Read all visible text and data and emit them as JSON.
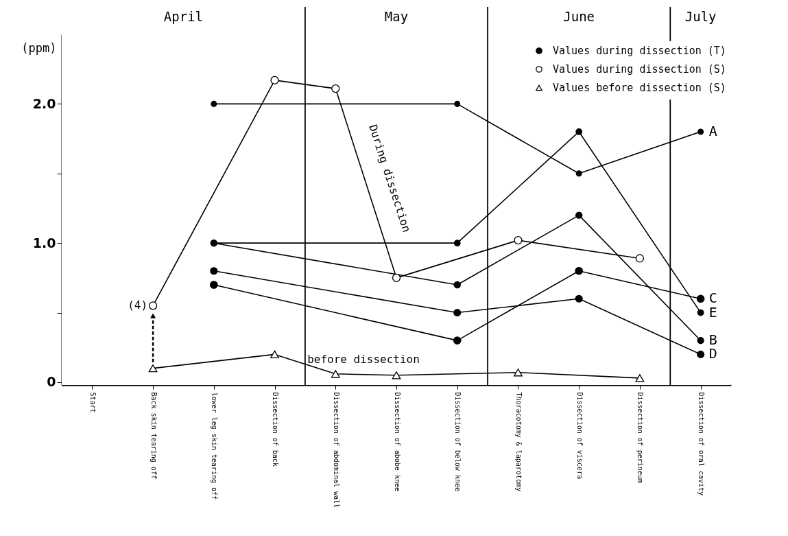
{
  "chart_data": {
    "type": "line",
    "ylabel": "(ppm)",
    "marker": "circle",
    "legend": "top right",
    "grid": false,
    "categories": [
      "Start",
      "Back skin tearing off",
      "lower leg skin tearing off",
      "Dissection of back",
      "Dissection of abdominal wall",
      "Dissection of abobe knee",
      "Dissection of below knee",
      "Thoracotomy & laparotomy",
      "Dissection of viscera",
      "Dissection of perineum",
      "Dissection of oral cavity"
    ],
    "ylim": [
      -0.02,
      2.5
    ],
    "yticks": [
      0,
      {
        "value": 0.5,
        "label": null
      },
      {
        "value": 1,
        "label": "1.0"
      },
      {
        "value": 1.5,
        "label": null
      },
      {
        "value": 2,
        "label": "2.0"
      }
    ],
    "bands": [
      {
        "axis": "x",
        "from": "Start",
        "to": "Dissection of back",
        "label": "April",
        "color": "#ffffff"
      },
      {
        "axis": "x",
        "from": "Dissection of abdominal wall",
        "to": "Dissection of below knee",
        "label": "May",
        "color": "#ffffff"
      },
      {
        "axis": "x",
        "from": "Thoracotomy & laparotomy",
        "to": "Dissection of perineum",
        "label": "June",
        "color": "#ffffff"
      },
      {
        "axis": "x",
        "from": "Dissection of oral cavity",
        "to": "Dissection of oral cavity",
        "label": "July",
        "color": "#ffffff"
      }
    ],
    "series": [
      {
        "name": "A",
        "color": "#000000",
        "x": [
          "lower leg skin tearing off",
          "Dissection of below knee",
          "Dissection of viscera",
          "Dissection of oral cavity"
        ],
        "values": [
          2.0,
          2.0,
          1.5,
          1.8
        ]
      },
      {
        "name": "E",
        "color": "#000000",
        "x": [
          "lower leg skin tearing off",
          "Dissection of below knee",
          "Dissection of viscera",
          "Dissection of oral cavity"
        ],
        "values": [
          1.0,
          1.0,
          1.8,
          0.5
        ]
      },
      {
        "name": "B",
        "color": "#000000",
        "x": [
          "lower leg skin tearing off",
          "Dissection of below knee",
          "Dissection of viscera",
          "Dissection of oral cavity"
        ],
        "values": [
          1.0,
          0.7,
          1.2,
          0.3
        ]
      },
      {
        "name": "D",
        "color": "#000000",
        "x": [
          "lower leg skin tearing off",
          "Dissection of below knee",
          "Dissection of viscera",
          "Dissection of oral cavity"
        ],
        "values": [
          0.8,
          0.5,
          0.6,
          0.2
        ]
      },
      {
        "name": "C",
        "color": "#000000",
        "x": [
          "lower leg skin tearing off",
          "Dissection of below knee",
          "Dissection of viscera",
          "Dissection of oral cavity"
        ],
        "values": [
          0.7,
          0.3,
          0.8,
          0.6
        ]
      },
      {
        "name": "Values during dissection (S)",
        "color": "#000000",
        "x": [
          "Back skin tearing off",
          "Dissection of back",
          "Dissection of abdominal wall",
          "Dissection of abobe knee",
          "Thoracotomy & laparotomy",
          "Dissection of perineum"
        ],
        "values": [
          0.55,
          2.17,
          2.11,
          0.75,
          1.02,
          0.89
        ]
      },
      {
        "name": "Values before dissection (S)",
        "color": "#000000",
        "marker": "triangle",
        "x": [
          "Back skin tearing off",
          "Dissection of back",
          "Dissection of abdominal wall",
          "Dissection of abobe knee",
          "Thoracotomy & laparotomy",
          "Dissection of perineum"
        ],
        "values": [
          0.1,
          0.2,
          0.06,
          0.05,
          0.07,
          0.03
        ]
      }
    ],
    "annotations": [
      "Values during dissection (T)",
      {
        "text": "(4)",
        "x": "Back skin tearing off",
        "y": 0.55
      },
      "During dissection",
      "before dissection"
    ]
  }
}
